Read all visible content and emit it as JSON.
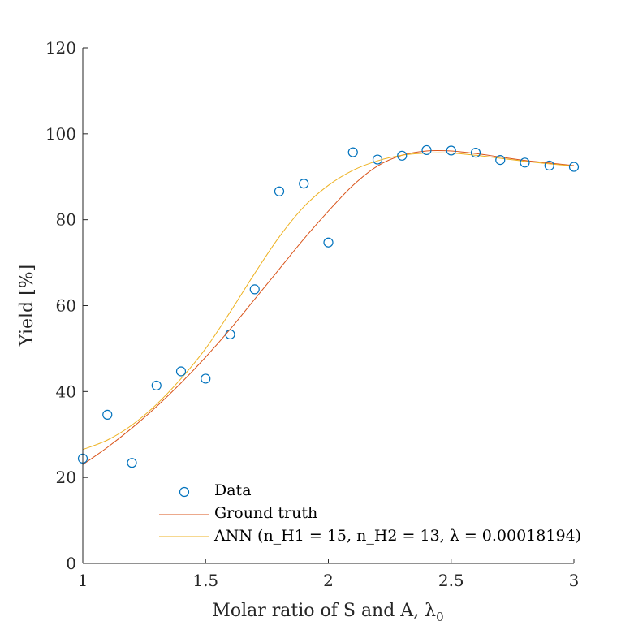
{
  "chart_data": {
    "type": "scatter",
    "title": "",
    "xlabel": "Molar ratio of S and A, λ",
    "xlabel_subscript": "0",
    "ylabel": "Yield [%]",
    "xlim": [
      1,
      3
    ],
    "ylim": [
      0,
      120
    ],
    "x_ticks": [
      1,
      1.5,
      2,
      2.5,
      3
    ],
    "x_tick_labels": [
      "1",
      "1.5",
      "2",
      "2.5",
      "3"
    ],
    "y_ticks": [
      0,
      20,
      40,
      60,
      80,
      100,
      120
    ],
    "y_tick_labels": [
      "0",
      "20",
      "40",
      "60",
      "80",
      "100",
      "120"
    ],
    "grid": false,
    "legend_placement": "bottom-left",
    "series": [
      {
        "name": "Data",
        "kind": "markers",
        "marker": "circle",
        "color": "#0072BD",
        "points": [
          [
            1.0,
            24.4
          ],
          [
            1.1,
            34.6
          ],
          [
            1.2,
            23.4
          ],
          [
            1.3,
            41.4
          ],
          [
            1.4,
            44.7
          ],
          [
            1.5,
            43.0
          ],
          [
            1.6,
            53.3
          ],
          [
            1.7,
            63.8
          ],
          [
            1.8,
            86.6
          ],
          [
            1.9,
            88.4
          ],
          [
            2.0,
            74.7
          ],
          [
            2.1,
            95.7
          ],
          [
            2.2,
            94.0
          ],
          [
            2.3,
            94.9
          ],
          [
            2.4,
            96.2
          ],
          [
            2.5,
            96.1
          ],
          [
            2.6,
            95.6
          ],
          [
            2.7,
            93.9
          ],
          [
            2.8,
            93.3
          ],
          [
            2.9,
            92.6
          ],
          [
            3.0,
            92.3
          ]
        ]
      },
      {
        "name": "Ground truth",
        "kind": "line",
        "color": "#D95319",
        "points": [
          [
            1.0,
            23.0
          ],
          [
            1.1,
            27.0
          ],
          [
            1.2,
            31.5
          ],
          [
            1.3,
            36.5
          ],
          [
            1.4,
            42.0
          ],
          [
            1.5,
            48.0
          ],
          [
            1.6,
            54.5
          ],
          [
            1.7,
            61.5
          ],
          [
            1.8,
            68.5
          ],
          [
            1.9,
            75.5
          ],
          [
            2.0,
            82.0
          ],
          [
            2.1,
            88.0
          ],
          [
            2.2,
            92.5
          ],
          [
            2.3,
            95.0
          ],
          [
            2.4,
            96.0
          ],
          [
            2.5,
            96.0
          ],
          [
            2.6,
            95.4
          ],
          [
            2.7,
            94.6
          ],
          [
            2.8,
            93.8
          ],
          [
            2.9,
            93.2
          ],
          [
            3.0,
            92.6
          ]
        ]
      },
      {
        "name": "ANN",
        "legend_params": "(n_H1 = 15, n_H2 = 13, λ = 0.00018194)",
        "kind": "line",
        "color": "#EDB120",
        "points": [
          [
            1.0,
            26.5
          ],
          [
            1.1,
            28.7
          ],
          [
            1.2,
            32.2
          ],
          [
            1.3,
            37.0
          ],
          [
            1.4,
            43.0
          ],
          [
            1.5,
            50.0
          ],
          [
            1.6,
            58.5
          ],
          [
            1.7,
            67.5
          ],
          [
            1.8,
            76.0
          ],
          [
            1.9,
            83.0
          ],
          [
            2.0,
            88.0
          ],
          [
            2.1,
            91.5
          ],
          [
            2.2,
            93.7
          ],
          [
            2.3,
            95.0
          ],
          [
            2.4,
            95.5
          ],
          [
            2.5,
            95.5
          ],
          [
            2.6,
            95.0
          ],
          [
            2.7,
            94.3
          ],
          [
            2.8,
            93.6
          ],
          [
            2.9,
            93.0
          ],
          [
            3.0,
            92.5
          ]
        ]
      }
    ]
  }
}
